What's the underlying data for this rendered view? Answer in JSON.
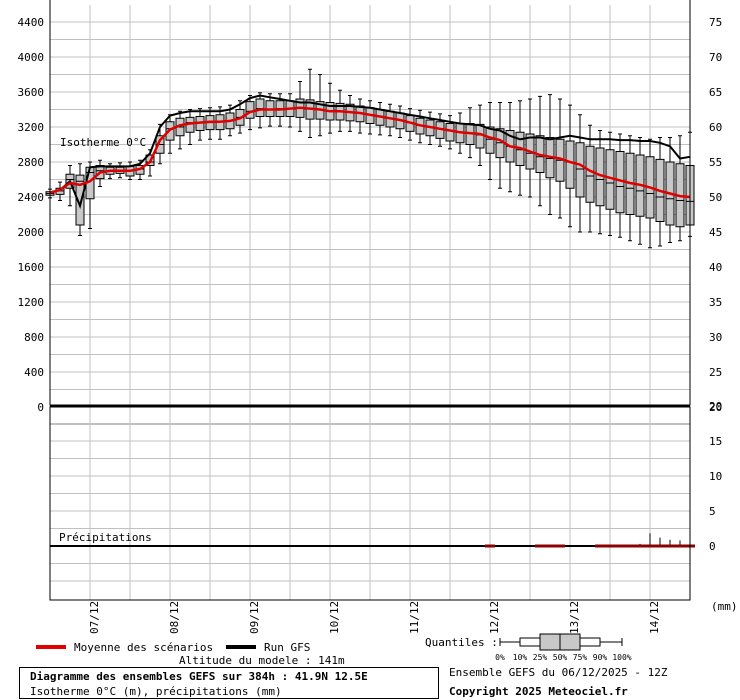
{
  "chart_data": {
    "type": "box",
    "title": "Diagramme des ensembles GEFS sur 384h : 41.9N 12.5E",
    "subtitle": "Isotherme 0°C (m), précipitations (mm)",
    "model_altitude": "Altitude du modele : 141m",
    "run_info": "Ensemble GEFS du 06/12/2025 - 12Z",
    "copyright": "Copyright 2025 Meteociel.fr",
    "x_labels": [
      "07/12",
      "08/12",
      "09/12",
      "10/12",
      "11/12",
      "12/12",
      "13/12",
      "14/12"
    ],
    "x_units": "hours since 06/12/2025 12Z",
    "x_label_hours": [
      12,
      36,
      60,
      84,
      108,
      132,
      156,
      180
    ],
    "x_range": [
      0,
      192
    ],
    "isotherm": {
      "label": "Isotherme 0°C",
      "ylim": [
        0,
        4600
      ],
      "left_ticks": [
        0,
        400,
        800,
        1200,
        1600,
        2000,
        2400,
        2800,
        3200,
        3600,
        4000,
        4400
      ],
      "right_ticks": [
        20,
        25,
        30,
        35,
        40,
        45,
        50,
        55,
        60,
        65,
        70,
        75
      ],
      "hours": [
        0,
        3,
        6,
        9,
        12,
        15,
        18,
        21,
        24,
        27,
        30,
        33,
        36,
        39,
        42,
        45,
        48,
        51,
        54,
        57,
        60,
        63,
        66,
        69,
        72,
        75,
        78,
        81,
        84,
        87,
        90,
        93,
        96,
        99,
        102,
        105,
        108,
        111,
        114,
        117,
        120,
        123,
        126,
        129,
        132,
        135,
        138,
        141,
        144,
        147,
        150,
        153,
        156,
        159,
        162,
        165,
        168,
        171,
        174,
        177,
        180,
        183,
        186,
        189,
        192
      ],
      "mean": [
        2450,
        2480,
        2560,
        2540,
        2580,
        2680,
        2700,
        2700,
        2700,
        2720,
        2800,
        3050,
        3170,
        3220,
        3240,
        3250,
        3260,
        3260,
        3270,
        3300,
        3370,
        3400,
        3400,
        3400,
        3410,
        3420,
        3410,
        3400,
        3380,
        3380,
        3370,
        3360,
        3340,
        3320,
        3300,
        3280,
        3250,
        3220,
        3200,
        3180,
        3160,
        3140,
        3130,
        3120,
        3080,
        3050,
        2980,
        2960,
        2920,
        2880,
        2860,
        2840,
        2800,
        2770,
        2700,
        2650,
        2620,
        2590,
        2560,
        2540,
        2510,
        2470,
        2440,
        2410,
        2400
      ],
      "run": [
        2450,
        2480,
        2580,
        2300,
        2740,
        2750,
        2750,
        2750,
        2750,
        2780,
        2900,
        3200,
        3330,
        3360,
        3380,
        3380,
        3380,
        3380,
        3400,
        3460,
        3530,
        3560,
        3540,
        3520,
        3500,
        3480,
        3480,
        3460,
        3440,
        3440,
        3440,
        3430,
        3420,
        3400,
        3380,
        3360,
        3340,
        3320,
        3300,
        3280,
        3260,
        3240,
        3230,
        3220,
        3180,
        3160,
        3100,
        3060,
        3080,
        3080,
        3060,
        3080,
        3100,
        3080,
        3060,
        3060,
        3060,
        3050,
        3050,
        3040,
        3040,
        3020,
        2980,
        2840,
        2860
      ],
      "boxes": [
        {
          "h": 0,
          "q": [
            2390,
            2420,
            2440,
            2460,
            2490
          ]
        },
        {
          "h": 3,
          "q": [
            2360,
            2430,
            2470,
            2500,
            2570
          ]
        },
        {
          "h": 6,
          "q": [
            2300,
            2500,
            2600,
            2660,
            2760
          ]
        },
        {
          "h": 9,
          "q": [
            1960,
            2080,
            2580,
            2650,
            2780
          ]
        },
        {
          "h": 12,
          "q": [
            2040,
            2380,
            2680,
            2740,
            2800
          ]
        },
        {
          "h": 15,
          "q": [
            2520,
            2610,
            2700,
            2760,
            2820
          ]
        },
        {
          "h": 18,
          "q": [
            2610,
            2660,
            2700,
            2740,
            2780
          ]
        },
        {
          "h": 21,
          "q": [
            2620,
            2670,
            2700,
            2740,
            2790
          ]
        },
        {
          "h": 24,
          "q": [
            2600,
            2640,
            2700,
            2750,
            2800
          ]
        },
        {
          "h": 27,
          "q": [
            2600,
            2660,
            2720,
            2760,
            2820
          ]
        },
        {
          "h": 30,
          "q": [
            2640,
            2760,
            2800,
            2880,
            2940
          ]
        },
        {
          "h": 33,
          "q": [
            2780,
            2900,
            3000,
            3100,
            3230
          ]
        },
        {
          "h": 36,
          "q": [
            2900,
            3050,
            3180,
            3260,
            3340
          ]
        },
        {
          "h": 39,
          "q": [
            2950,
            3100,
            3200,
            3300,
            3380
          ]
        },
        {
          "h": 42,
          "q": [
            3000,
            3140,
            3250,
            3310,
            3400
          ]
        },
        {
          "h": 45,
          "q": [
            3050,
            3160,
            3250,
            3320,
            3410
          ]
        },
        {
          "h": 48,
          "q": [
            3060,
            3170,
            3250,
            3330,
            3420
          ]
        },
        {
          "h": 51,
          "q": [
            3060,
            3170,
            3260,
            3340,
            3430
          ]
        },
        {
          "h": 54,
          "q": [
            3100,
            3180,
            3270,
            3360,
            3450
          ]
        },
        {
          "h": 57,
          "q": [
            3130,
            3220,
            3310,
            3400,
            3500
          ]
        },
        {
          "h": 60,
          "q": [
            3170,
            3300,
            3380,
            3490,
            3560
          ]
        },
        {
          "h": 63,
          "q": [
            3190,
            3320,
            3410,
            3520,
            3590
          ]
        },
        {
          "h": 66,
          "q": [
            3210,
            3320,
            3400,
            3500,
            3580
          ]
        },
        {
          "h": 69,
          "q": [
            3210,
            3320,
            3410,
            3500,
            3580
          ]
        },
        {
          "h": 72,
          "q": [
            3200,
            3320,
            3410,
            3500,
            3580
          ]
        },
        {
          "h": 75,
          "q": [
            3150,
            3310,
            3420,
            3520,
            3720
          ]
        },
        {
          "h": 78,
          "q": [
            3080,
            3290,
            3410,
            3510,
            3860
          ]
        },
        {
          "h": 81,
          "q": [
            3100,
            3290,
            3400,
            3490,
            3800
          ]
        },
        {
          "h": 84,
          "q": [
            3130,
            3280,
            3380,
            3480,
            3700
          ]
        },
        {
          "h": 87,
          "q": [
            3150,
            3280,
            3380,
            3470,
            3620
          ]
        },
        {
          "h": 90,
          "q": [
            3150,
            3270,
            3370,
            3460,
            3560
          ]
        },
        {
          "h": 93,
          "q": [
            3130,
            3260,
            3360,
            3440,
            3520
          ]
        },
        {
          "h": 96,
          "q": [
            3120,
            3240,
            3340,
            3420,
            3500
          ]
        },
        {
          "h": 99,
          "q": [
            3110,
            3220,
            3320,
            3400,
            3480
          ]
        },
        {
          "h": 102,
          "q": [
            3100,
            3200,
            3300,
            3380,
            3460
          ]
        },
        {
          "h": 105,
          "q": [
            3080,
            3180,
            3280,
            3360,
            3440
          ]
        },
        {
          "h": 108,
          "q": [
            3050,
            3150,
            3250,
            3330,
            3410
          ]
        },
        {
          "h": 111,
          "q": [
            3020,
            3120,
            3220,
            3300,
            3390
          ]
        },
        {
          "h": 114,
          "q": [
            3000,
            3100,
            3200,
            3280,
            3370
          ]
        },
        {
          "h": 117,
          "q": [
            2980,
            3070,
            3180,
            3260,
            3350
          ]
        },
        {
          "h": 120,
          "q": [
            2950,
            3040,
            3160,
            3240,
            3330
          ]
        },
        {
          "h": 123,
          "q": [
            2900,
            3020,
            3140,
            3240,
            3360
          ]
        },
        {
          "h": 126,
          "q": [
            2850,
            3000,
            3130,
            3240,
            3420
          ]
        },
        {
          "h": 129,
          "q": [
            2760,
            2960,
            3110,
            3230,
            3450
          ]
        },
        {
          "h": 132,
          "q": [
            2600,
            2900,
            3060,
            3200,
            3480
          ]
        },
        {
          "h": 135,
          "q": [
            2500,
            2850,
            3020,
            3180,
            3480
          ]
        },
        {
          "h": 138,
          "q": [
            2460,
            2800,
            2980,
            3160,
            3480
          ]
        },
        {
          "h": 141,
          "q": [
            2420,
            2760,
            2940,
            3140,
            3500
          ]
        },
        {
          "h": 144,
          "q": [
            2400,
            2720,
            2900,
            3120,
            3520
          ]
        },
        {
          "h": 147,
          "q": [
            2300,
            2680,
            2860,
            3100,
            3550
          ]
        },
        {
          "h": 150,
          "q": [
            2200,
            2620,
            2840,
            3080,
            3570
          ]
        },
        {
          "h": 153,
          "q": [
            2160,
            2580,
            2820,
            3060,
            3520
          ]
        },
        {
          "h": 156,
          "q": [
            2060,
            2500,
            2800,
            3040,
            3450
          ]
        },
        {
          "h": 159,
          "q": [
            2000,
            2400,
            2720,
            3020,
            3340
          ]
        },
        {
          "h": 162,
          "q": [
            2000,
            2340,
            2640,
            2980,
            3220
          ]
        },
        {
          "h": 165,
          "q": [
            1980,
            2300,
            2600,
            2960,
            3160
          ]
        },
        {
          "h": 168,
          "q": [
            1960,
            2260,
            2560,
            2940,
            3140
          ]
        },
        {
          "h": 171,
          "q": [
            1940,
            2220,
            2520,
            2920,
            3120
          ]
        },
        {
          "h": 174,
          "q": [
            1900,
            2200,
            2500,
            2900,
            3100
          ]
        },
        {
          "h": 177,
          "q": [
            1860,
            2180,
            2470,
            2880,
            3080
          ]
        },
        {
          "h": 180,
          "q": [
            1820,
            2160,
            2440,
            2860,
            3060
          ]
        },
        {
          "h": 183,
          "q": [
            1840,
            2120,
            2400,
            2830,
            3080
          ]
        },
        {
          "h": 186,
          "q": [
            1880,
            2080,
            2380,
            2800,
            3080
          ]
        },
        {
          "h": 189,
          "q": [
            1900,
            2060,
            2360,
            2780,
            3100
          ]
        },
        {
          "h": 192,
          "q": [
            1950,
            2080,
            2350,
            2760,
            3140
          ]
        }
      ]
    },
    "precip": {
      "label": "Précipitations",
      "units": "(mm)",
      "ylim": [
        -8,
        20
      ],
      "right_ticks": [
        0,
        5,
        10,
        15,
        20
      ],
      "left_ticks": [
        0
      ],
      "bars": [
        {
          "h": 132,
          "max": 0.2
        },
        {
          "h": 147,
          "max": 0.2
        },
        {
          "h": 150,
          "max": 0.2
        },
        {
          "h": 153,
          "max": 0.2
        },
        {
          "h": 165,
          "max": 0.2
        },
        {
          "h": 168,
          "max": 0.2
        },
        {
          "h": 171,
          "max": 0.2
        },
        {
          "h": 174,
          "max": 0.2
        },
        {
          "h": 177,
          "max": 0.3
        },
        {
          "h": 180,
          "max": 1.8
        },
        {
          "h": 183,
          "max": 1.2
        },
        {
          "h": 186,
          "max": 0.9
        },
        {
          "h": 189,
          "max": 0.8
        },
        {
          "h": 192,
          "max": 2.3
        }
      ]
    }
  },
  "legend": {
    "mean_label": "Moyenne des scénarios",
    "mean_color": "#e00000",
    "run_label": "Run GFS",
    "run_color": "#000000",
    "quantiles_label": "Quantiles :",
    "quantile_ticks": [
      "0%",
      "10%",
      "25%",
      "50%",
      "75%",
      "90%",
      "100%"
    ]
  },
  "colors": {
    "box_fill": "#c8c8c8",
    "grid": "#c0c0c0",
    "precip_bar": "#8b0000"
  }
}
